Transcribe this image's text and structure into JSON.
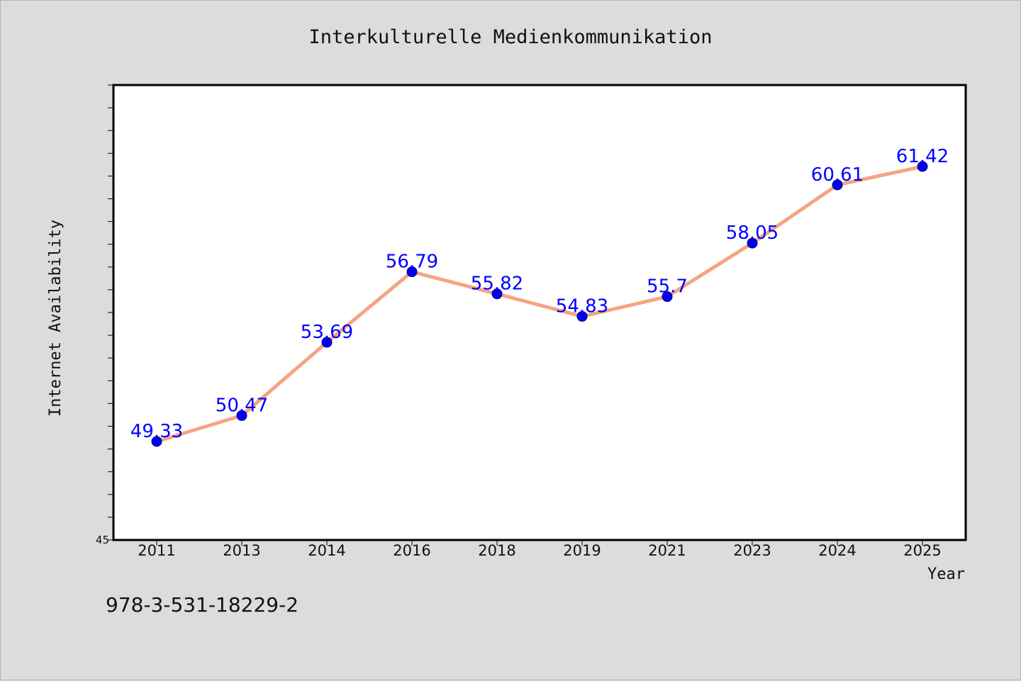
{
  "chart_data": {
    "type": "line",
    "title": "Interkulturelle Medienkommunikation",
    "xlabel": "Year",
    "ylabel": "Internet Availability",
    "categories": [
      "2011",
      "2013",
      "2014",
      "2016",
      "2018",
      "2019",
      "2021",
      "2023",
      "2024",
      "2025"
    ],
    "series": [
      {
        "values": [
          49.33,
          50.47,
          53.69,
          56.79,
          55.82,
          54.83,
          55.7,
          58.05,
          60.61,
          61.42
        ],
        "data_labels": [
          "49.33",
          "50.47",
          "53.69",
          "56.79",
          "55.82",
          "54.83",
          "55.7",
          "58.05",
          "60.61",
          "61.42"
        ]
      }
    ],
    "ylim": [
      45,
      65
    ],
    "y_tick_labels": [
      "45"
    ],
    "grid": false,
    "legend": "none",
    "colors": {
      "line": "#f4a582",
      "marker": "#0000ee",
      "label": "#0000ff",
      "plot_background": "#ffffff",
      "figure_background": "#dcdcdc"
    }
  },
  "footer": {
    "isbn": "978-3-531-18229-2"
  }
}
